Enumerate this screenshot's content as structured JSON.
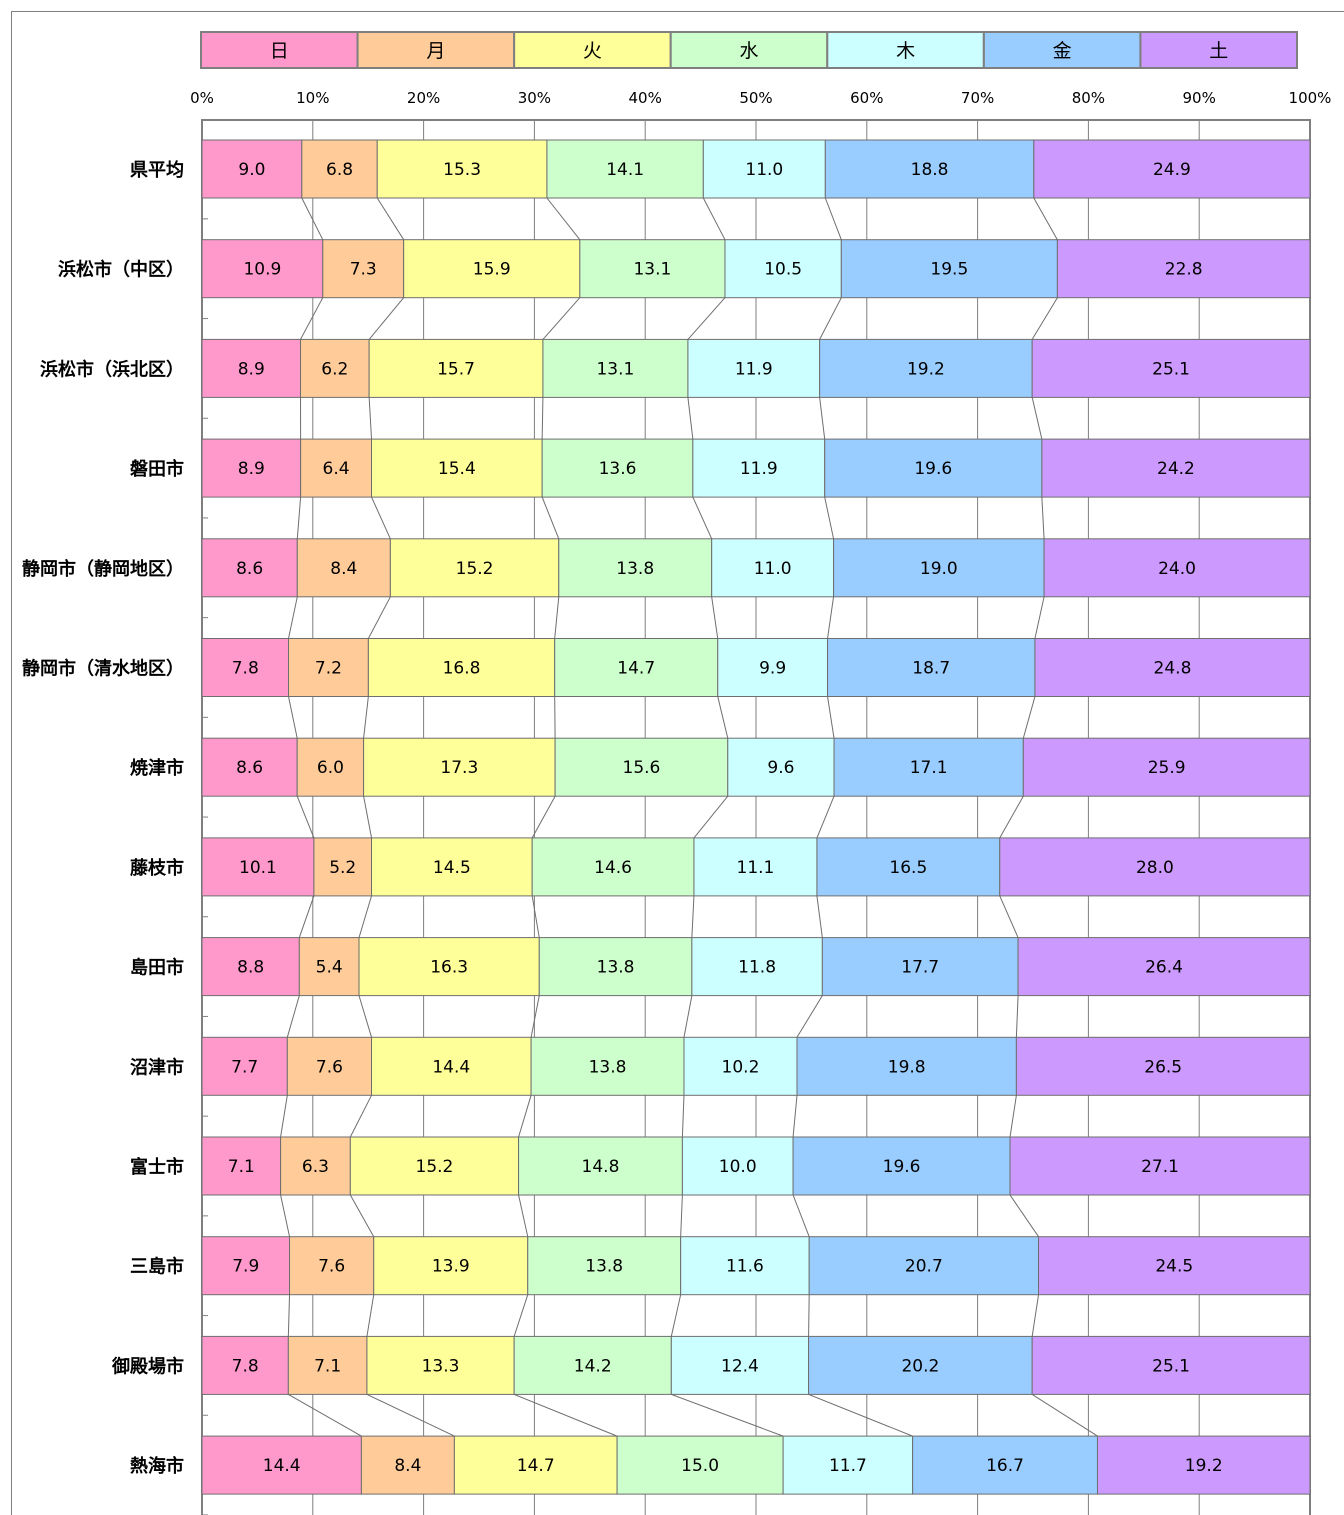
{
  "chart_data": {
    "type": "bar",
    "stacked": true,
    "orientation": "horizontal",
    "percent_axis": true,
    "xlim": [
      0,
      100
    ],
    "x_ticks": [
      "0%",
      "10%",
      "20%",
      "30%",
      "40%",
      "50%",
      "60%",
      "70%",
      "80%",
      "90%",
      "100%"
    ],
    "grid": true,
    "legend_position": "top",
    "series_connector_lines": true,
    "categories": [
      "県平均",
      "浜松市（中区）",
      "浜松市（浜北区）",
      "磐田市",
      "静岡市（静岡地区）",
      "静岡市（清水地区）",
      "焼津市",
      "藤枝市",
      "島田市",
      "沼津市",
      "富士市",
      "三島市",
      "御殿場市",
      "熱海市"
    ],
    "series": [
      {
        "name": "日",
        "color": "#ff99cc",
        "values": [
          9.0,
          10.9,
          8.9,
          8.9,
          8.6,
          7.8,
          8.6,
          10.1,
          8.8,
          7.7,
          7.1,
          7.9,
          7.8,
          14.4
        ]
      },
      {
        "name": "月",
        "color": "#ffcc99",
        "values": [
          6.8,
          7.3,
          6.2,
          6.4,
          8.4,
          7.2,
          6.0,
          5.2,
          5.4,
          7.6,
          6.3,
          7.6,
          7.1,
          8.4
        ]
      },
      {
        "name": "火",
        "color": "#ffff99",
        "values": [
          15.3,
          15.9,
          15.7,
          15.4,
          15.2,
          16.8,
          17.3,
          14.5,
          16.3,
          14.4,
          15.2,
          13.9,
          13.3,
          14.7
        ]
      },
      {
        "name": "水",
        "color": "#ccffcc",
        "values": [
          14.1,
          13.1,
          13.1,
          13.6,
          13.8,
          14.7,
          15.6,
          14.6,
          13.8,
          13.8,
          14.8,
          13.8,
          14.2,
          15.0
        ]
      },
      {
        "name": "木",
        "color": "#ccffff",
        "values": [
          11.0,
          10.5,
          11.9,
          11.9,
          11.0,
          9.9,
          9.6,
          11.1,
          11.8,
          10.2,
          10.0,
          11.6,
          12.4,
          11.7
        ]
      },
      {
        "name": "金",
        "color": "#99ccff",
        "values": [
          18.8,
          19.5,
          19.2,
          19.6,
          19.0,
          18.7,
          17.1,
          16.5,
          17.7,
          19.8,
          19.6,
          20.7,
          20.2,
          16.7
        ]
      },
      {
        "name": "土",
        "color": "#cc99ff",
        "values": [
          24.9,
          22.8,
          25.1,
          24.2,
          24.0,
          24.8,
          25.9,
          28.0,
          26.4,
          26.5,
          27.1,
          24.5,
          25.1,
          19.2
        ]
      }
    ]
  }
}
